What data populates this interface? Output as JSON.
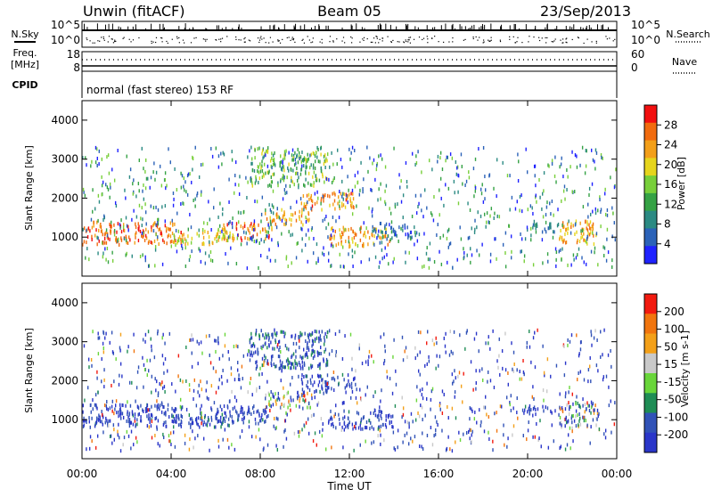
{
  "header": {
    "left": "Unwin (fitACF)",
    "center": "Beam 05",
    "right": "23/Sep/2013"
  },
  "chart_data": [
    {
      "type": "line",
      "panel": "noise",
      "labels_left": [
        "N.Sky"
      ],
      "labels_right": [
        "N.Search"
      ],
      "left_ticks": [
        "10^5",
        "10^0"
      ],
      "right_ticks": [
        "10^5",
        "10^0"
      ]
    },
    {
      "type": "line",
      "panel": "frequency",
      "labels_left": [
        "Freq.",
        "[MHz]"
      ],
      "labels_right": [
        "Nave"
      ],
      "left_ticks": [
        "18",
        "8"
      ],
      "right_ticks": [
        "60",
        "0"
      ]
    },
    {
      "type": "text",
      "panel": "cpid",
      "label": "CPID",
      "text": "normal (fast stereo) 153 RF"
    },
    {
      "type": "heatmap",
      "panel": "power",
      "ylabel": "Slant Range [km]",
      "ylim": [
        0,
        4500
      ],
      "yticks": [
        "1000",
        "2000",
        "3000",
        "4000"
      ],
      "colorbar_label": "Power [dB]",
      "colorbar_ticks": [
        "4",
        "8",
        "12",
        "16",
        "20",
        "24",
        "28"
      ],
      "colors": [
        "#1f22ff",
        "#2b62b8",
        "#2b8a83",
        "#35a245",
        "#78cf3a",
        "#e6d51d",
        "#f39f19",
        "#f16b0e",
        "#f20f0f"
      ],
      "bands": [
        {
          "t": [
            0.0,
            4.5
          ],
          "r": [
            800,
            1380
          ],
          "v": [
            22,
            30
          ]
        },
        {
          "t": [
            4.0,
            6.8
          ],
          "r": [
            800,
            1150
          ],
          "v": [
            15,
            24
          ]
        },
        {
          "t": [
            6.0,
            8.5
          ],
          "r": [
            900,
            1350
          ],
          "v": [
            20,
            30
          ]
        },
        {
          "t": [
            8.2,
            10.3
          ],
          "r": [
            1300,
            1700
          ],
          "v": [
            18,
            28
          ]
        },
        {
          "t": [
            9.8,
            12.3
          ],
          "r": [
            1700,
            2150
          ],
          "v": [
            20,
            30
          ]
        },
        {
          "t": [
            11.0,
            13.8
          ],
          "r": [
            750,
            1250
          ],
          "v": [
            18,
            28
          ]
        },
        {
          "t": [
            13.0,
            15.0
          ],
          "r": [
            950,
            1350
          ],
          "v": [
            2,
            12
          ]
        },
        {
          "t": [
            7.5,
            11.0
          ],
          "r": [
            2300,
            3300
          ],
          "v": [
            8,
            20
          ]
        },
        {
          "t": [
            19.8,
            21.4
          ],
          "r": [
            1100,
            1350
          ],
          "v": [
            4,
            12
          ]
        },
        {
          "t": [
            21.4,
            23.2
          ],
          "r": [
            800,
            1450
          ],
          "v": [
            18,
            28
          ]
        }
      ]
    },
    {
      "type": "heatmap",
      "panel": "velocity",
      "ylabel": "Slant Range [km]",
      "ylim": [
        0,
        4500
      ],
      "yticks": [
        "1000",
        "2000",
        "3000",
        "4000"
      ],
      "colorbar_label": "Velocity [m s-1]",
      "colorbar_ticks": [
        "200",
        "100",
        "50",
        "15",
        "-15",
        "-50",
        "-100",
        "-200"
      ],
      "colors": [
        "#2a36c9",
        "#3152b7",
        "#1f8d55",
        "#69d63a",
        "#c9c9c9",
        "#f3a019",
        "#f1750e",
        "#f21a0f"
      ],
      "bands": [
        {
          "t": [
            0.0,
            4.5
          ],
          "r": [
            800,
            1380
          ],
          "v": [
            -250,
            -120
          ]
        },
        {
          "t": [
            4.0,
            6.8
          ],
          "r": [
            800,
            1150
          ],
          "v": [
            -220,
            -100
          ]
        },
        {
          "t": [
            6.0,
            8.5
          ],
          "r": [
            900,
            1350
          ],
          "v": [
            -250,
            -120
          ]
        },
        {
          "t": [
            8.2,
            10.3
          ],
          "r": [
            1300,
            1700
          ],
          "v": [
            -200,
            150
          ]
        },
        {
          "t": [
            9.8,
            12.3
          ],
          "r": [
            1700,
            2150
          ],
          "v": [
            -250,
            -120
          ]
        },
        {
          "t": [
            11.0,
            13.8
          ],
          "r": [
            750,
            1250
          ],
          "v": [
            -250,
            -120
          ]
        },
        {
          "t": [
            7.5,
            11.0
          ],
          "r": [
            2300,
            3300
          ],
          "v": [
            -220,
            -80
          ]
        },
        {
          "t": [
            19.8,
            21.4
          ],
          "r": [
            1100,
            1350
          ],
          "v": [
            -250,
            -150
          ]
        },
        {
          "t": [
            21.4,
            23.2
          ],
          "r": [
            800,
            1450
          ],
          "v": [
            -250,
            200
          ]
        }
      ]
    }
  ],
  "x_axis": {
    "label": "Time UT",
    "ticks": [
      "00:00",
      "04:00",
      "08:00",
      "12:00",
      "16:00",
      "20:00",
      "00:00"
    ]
  }
}
